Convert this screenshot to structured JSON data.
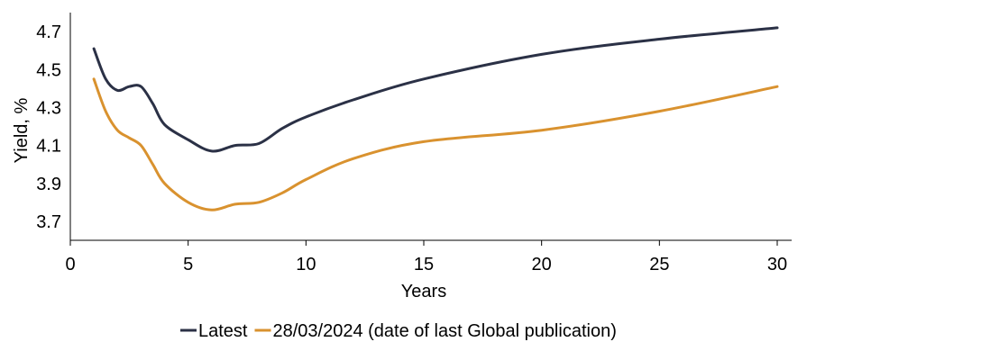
{
  "chart_data": {
    "type": "line",
    "title": "",
    "xlabel": "Years",
    "ylabel": "Yield, %",
    "xlim": [
      0,
      30
    ],
    "ylim": [
      3.6,
      4.8
    ],
    "xticks": [
      0,
      5,
      10,
      15,
      20,
      25,
      30
    ],
    "yticks": [
      3.7,
      3.9,
      4.1,
      4.3,
      4.5,
      4.7
    ],
    "ytick_labels": [
      "3.7",
      "3.9",
      "4.1",
      "4.3",
      "4.5",
      "4.7"
    ],
    "grid": false,
    "legend_position": "bottom",
    "series": [
      {
        "name": "Latest",
        "color": "#2b3146",
        "x": [
          1,
          1.5,
          2,
          2.5,
          3,
          3.5,
          4,
          5,
          6,
          7,
          8,
          9,
          10,
          12,
          15,
          20,
          25,
          30
        ],
        "y": [
          4.61,
          4.45,
          4.39,
          4.41,
          4.41,
          4.32,
          4.21,
          4.13,
          4.07,
          4.1,
          4.11,
          4.19,
          4.25,
          4.34,
          4.45,
          4.58,
          4.66,
          4.72
        ]
      },
      {
        "name": "28/03/2024 (date of last Global publication)",
        "color": "#d9922f",
        "x": [
          1,
          1.5,
          2,
          2.5,
          3,
          3.5,
          4,
          5,
          6,
          7,
          8,
          9,
          10,
          12,
          15,
          20,
          25,
          30
        ],
        "y": [
          4.45,
          4.28,
          4.18,
          4.14,
          4.1,
          4.0,
          3.9,
          3.8,
          3.76,
          3.79,
          3.8,
          3.85,
          3.92,
          4.03,
          4.12,
          4.18,
          4.28,
          4.41
        ]
      }
    ]
  }
}
